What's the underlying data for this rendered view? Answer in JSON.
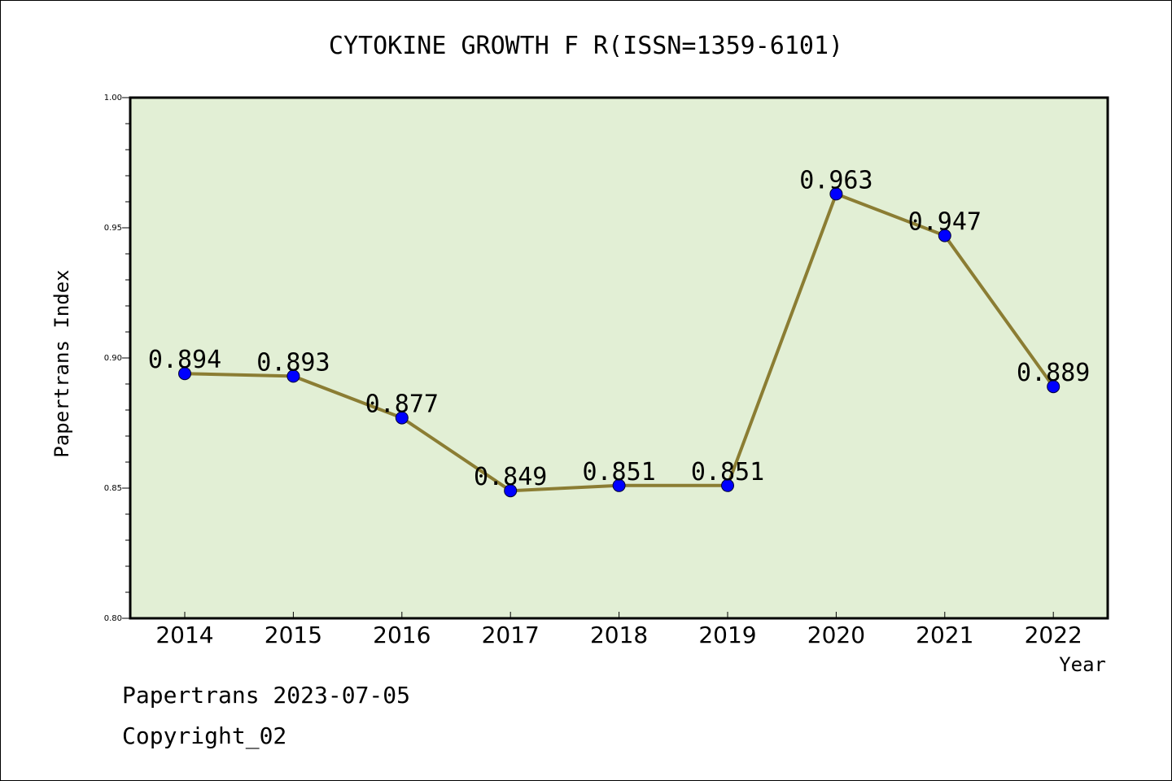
{
  "chart_data": {
    "type": "line",
    "title": "CYTOKINE GROWTH F R(ISSN=1359-6101)",
    "xlabel": "Year",
    "ylabel": "Papertrans Index",
    "categories": [
      "2014",
      "2015",
      "2016",
      "2017",
      "2018",
      "2019",
      "2020",
      "2021",
      "2022"
    ],
    "values": [
      0.894,
      0.893,
      0.877,
      0.849,
      0.851,
      0.851,
      0.963,
      0.947,
      0.889
    ],
    "data_labels": [
      "0.894",
      "0.893",
      "0.877",
      "0.849",
      "0.851",
      "0.851",
      "0.963",
      "0.947",
      "0.889"
    ],
    "ylim": [
      0.8,
      1.0
    ],
    "yticks": [
      "0.80",
      "0.85",
      "0.90",
      "0.95",
      "1.00"
    ],
    "grid": false,
    "colors": {
      "plot_background": "#e2efd5",
      "line": "#8b7d33",
      "marker": "#0000ff"
    }
  },
  "footer": {
    "line1": "Papertrans 2023-07-05",
    "line2": "Copyright_02"
  }
}
